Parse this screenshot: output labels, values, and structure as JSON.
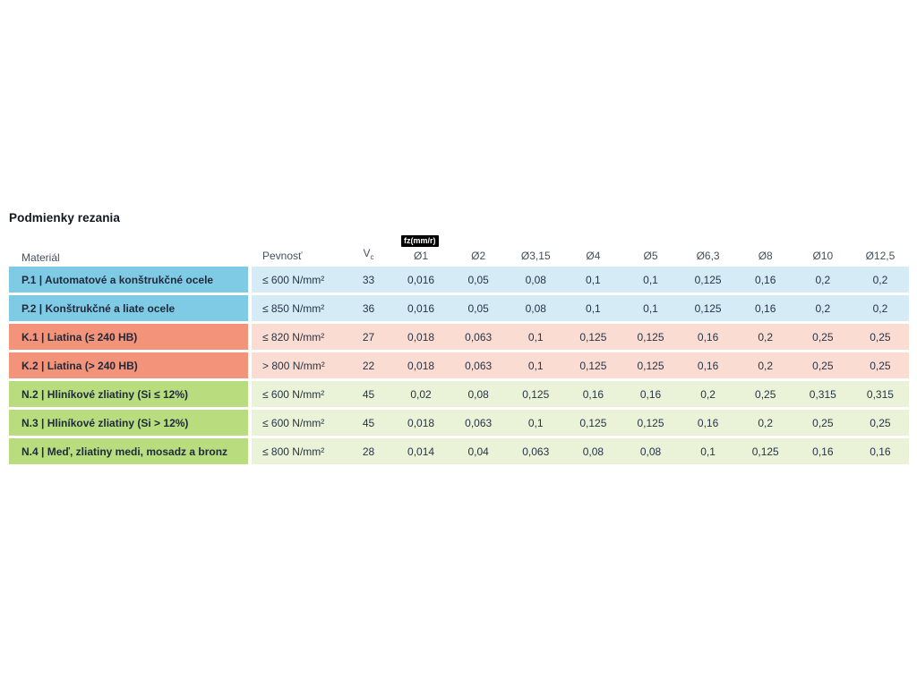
{
  "page": {
    "title": "Podmienky rezania"
  },
  "table": {
    "unit_badge": "fz(mm/r)",
    "headers": {
      "material": "Materiál",
      "strength": "Pevnosť",
      "vc_main": "V",
      "vc_sub": "c",
      "diameters": [
        "Ø1",
        "Ø2",
        "Ø3,15",
        "Ø4",
        "Ø5",
        "Ø6,3",
        "Ø8",
        "Ø10",
        "Ø12,5"
      ]
    },
    "rows": [
      {
        "group": "P",
        "material": "P.1 | Automatové a konštrukčné ocele",
        "strength": "≤ 600 N/mm²",
        "vc": "33",
        "values": [
          "0,016",
          "0,05",
          "0,08",
          "0,1",
          "0,1",
          "0,125",
          "0,16",
          "0,2",
          "0,2"
        ]
      },
      {
        "group": "P",
        "material": "P.2 | Konštrukčné a liate ocele",
        "strength": "≤ 850 N/mm²",
        "vc": "36",
        "values": [
          "0,016",
          "0,05",
          "0,08",
          "0,1",
          "0,1",
          "0,125",
          "0,16",
          "0,2",
          "0,2"
        ]
      },
      {
        "group": "K",
        "material": "K.1 | Liatina (≤ 240 HB)",
        "strength": "≤ 820 N/mm²",
        "vc": "27",
        "values": [
          "0,018",
          "0,063",
          "0,1",
          "0,125",
          "0,125",
          "0,16",
          "0,2",
          "0,25",
          "0,25"
        ]
      },
      {
        "group": "K",
        "material": "K.2 | Liatina (> 240 HB)",
        "strength": "> 800 N/mm²",
        "vc": "22",
        "values": [
          "0,018",
          "0,063",
          "0,1",
          "0,125",
          "0,125",
          "0,16",
          "0,2",
          "0,25",
          "0,25"
        ]
      },
      {
        "group": "N",
        "material": "N.2 | Hliníkové zliatiny (Si ≤ 12%)",
        "strength": "≤ 600 N/mm²",
        "vc": "45",
        "values": [
          "0,02",
          "0,08",
          "0,125",
          "0,16",
          "0,16",
          "0,2",
          "0,25",
          "0,315",
          "0,315"
        ]
      },
      {
        "group": "N",
        "material": "N.3 | Hliníkové zliatiny (Si > 12%)",
        "strength": "≤ 600 N/mm²",
        "vc": "45",
        "values": [
          "0,018",
          "0,063",
          "0,1",
          "0,125",
          "0,125",
          "0,16",
          "0,2",
          "0,25",
          "0,25"
        ]
      },
      {
        "group": "N",
        "material": "N.4 | Meď, zliatiny medi, mosadz a bronz",
        "strength": "≤ 800 N/mm²",
        "vc": "28",
        "values": [
          "0,014",
          "0,04",
          "0,063",
          "0,08",
          "0,08",
          "0,1",
          "0,125",
          "0,16",
          "0,16"
        ]
      }
    ],
    "colors": {
      "P": {
        "label_bg": "#7fcbe6",
        "row_bg": "#d5ecf7"
      },
      "K": {
        "label_bg": "#f3937a",
        "row_bg": "#fbdcd2"
      },
      "N": {
        "label_bg": "#b9dc7e",
        "row_bg": "#eaf2d8"
      },
      "material_text": "#1e2a3a",
      "value_text": "#273448",
      "header_text": "#44505e",
      "badge_bg": "#000000",
      "badge_text": "#ffffff"
    }
  },
  "chart_data": {
    "type": "table",
    "title": "Podmienky rezania",
    "columns": [
      "Materiál",
      "Pevnosť",
      "Vc",
      "Ø1",
      "Ø2",
      "Ø3,15",
      "Ø4",
      "Ø5",
      "Ø6,3",
      "Ø8",
      "Ø10",
      "Ø12,5"
    ],
    "feed_unit": "fz(mm/r)",
    "rows": [
      [
        "P.1 | Automatové a konštrukčné ocele",
        "≤ 600 N/mm²",
        33,
        0.016,
        0.05,
        0.08,
        0.1,
        0.1,
        0.125,
        0.16,
        0.2,
        0.2
      ],
      [
        "P.2 | Konštrukčné a liate ocele",
        "≤ 850 N/mm²",
        36,
        0.016,
        0.05,
        0.08,
        0.1,
        0.1,
        0.125,
        0.16,
        0.2,
        0.2
      ],
      [
        "K.1 | Liatina (≤ 240 HB)",
        "≤ 820 N/mm²",
        27,
        0.018,
        0.063,
        0.1,
        0.125,
        0.125,
        0.16,
        0.2,
        0.25,
        0.25
      ],
      [
        "K.2 | Liatina (> 240 HB)",
        "> 800 N/mm²",
        22,
        0.018,
        0.063,
        0.1,
        0.125,
        0.125,
        0.16,
        0.2,
        0.25,
        0.25
      ],
      [
        "N.2 | Hliníkové zliatiny (Si ≤ 12%)",
        "≤ 600 N/mm²",
        45,
        0.02,
        0.08,
        0.125,
        0.16,
        0.16,
        0.2,
        0.25,
        0.315,
        0.315
      ],
      [
        "N.3 | Hliníkové zliatiny (Si > 12%)",
        "≤ 600 N/mm²",
        45,
        0.018,
        0.063,
        0.1,
        0.125,
        0.125,
        0.16,
        0.2,
        0.25,
        0.25
      ],
      [
        "N.4 | Meď, zliatiny medi, mosadz a bronz",
        "≤ 800 N/mm²",
        28,
        0.014,
        0.04,
        0.063,
        0.08,
        0.08,
        0.1,
        0.125,
        0.16,
        0.16
      ]
    ]
  }
}
